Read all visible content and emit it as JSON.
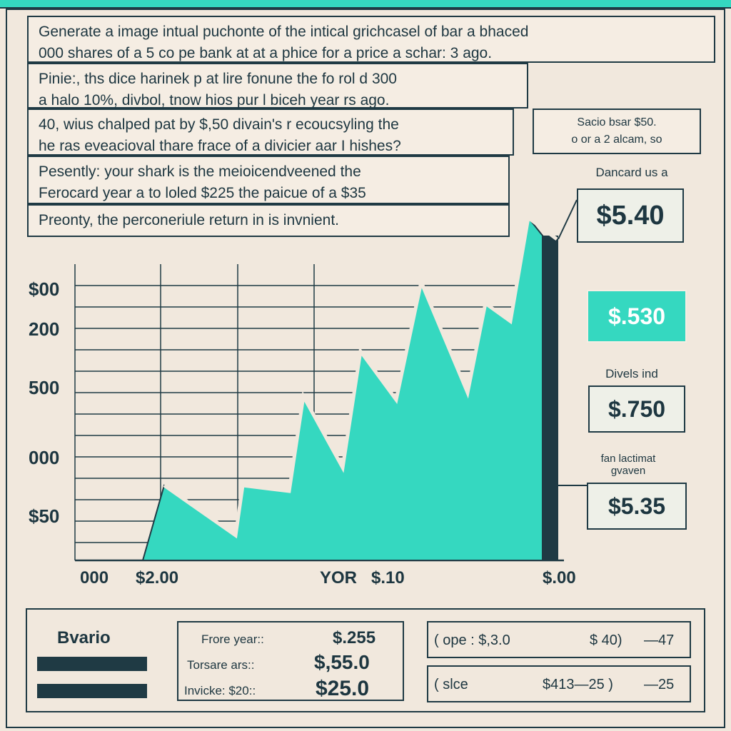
{
  "text_boxes": [
    {
      "lines": [
        "Generate a image intual puchonte of the intical grichcasel of bar a bhaced",
        "000 shares of a 5 co pe bank at at a phice for a price a schar: 3 ago."
      ]
    },
    {
      "lines": [
        "Pinie:, ths dice harinek p at lire fonune the fo rol d 300",
        "a halo 10%, divbol, tnow hios pur l biceh year rs ago."
      ]
    },
    {
      "lines": [
        "40, wius chalped pat by $,50 divain's r ecoucsyling the",
        "he ras eveacioval thare frace of a divicier aar I hishes?"
      ]
    },
    {
      "lines": [
        "Pesently: your shark is the meioicendveened the",
        "Ferocard year a to loled $225 the paicue of a $35"
      ]
    },
    {
      "lines": [
        "Preonty, the perconeriule return in is invnient."
      ]
    }
  ],
  "callout": {
    "lines": [
      "Sacio bsar $50.",
      "o or a 2 alcam, so"
    ]
  },
  "side_panels": [
    {
      "label": "Dancard us a",
      "value": "$5.40"
    },
    {
      "value": "$.530"
    },
    {
      "label": "Divels ind",
      "value": "$.750"
    },
    {
      "label": "fan lactimat gvaven",
      "value": "$5.35"
    }
  ],
  "chart": {
    "y_labels": [
      "$00",
      "200",
      "500",
      "000",
      "$50"
    ],
    "x_labels": [
      "000",
      "$2.00",
      "YOR",
      "$.10",
      "$.00"
    ]
  },
  "footer": {
    "legend_title": "Bvario",
    "summary": [
      [
        "Frore year::",
        "$.255"
      ],
      [
        "Torsare ars::",
        "$,55.0"
      ],
      [
        "Invicke: $20::",
        "$25.0"
      ]
    ],
    "rows": [
      [
        "( ope : $,3.0",
        "$ 40)",
        "—47"
      ],
      [
        "( slce",
        "$413—25 )",
        "—25"
      ]
    ]
  }
}
